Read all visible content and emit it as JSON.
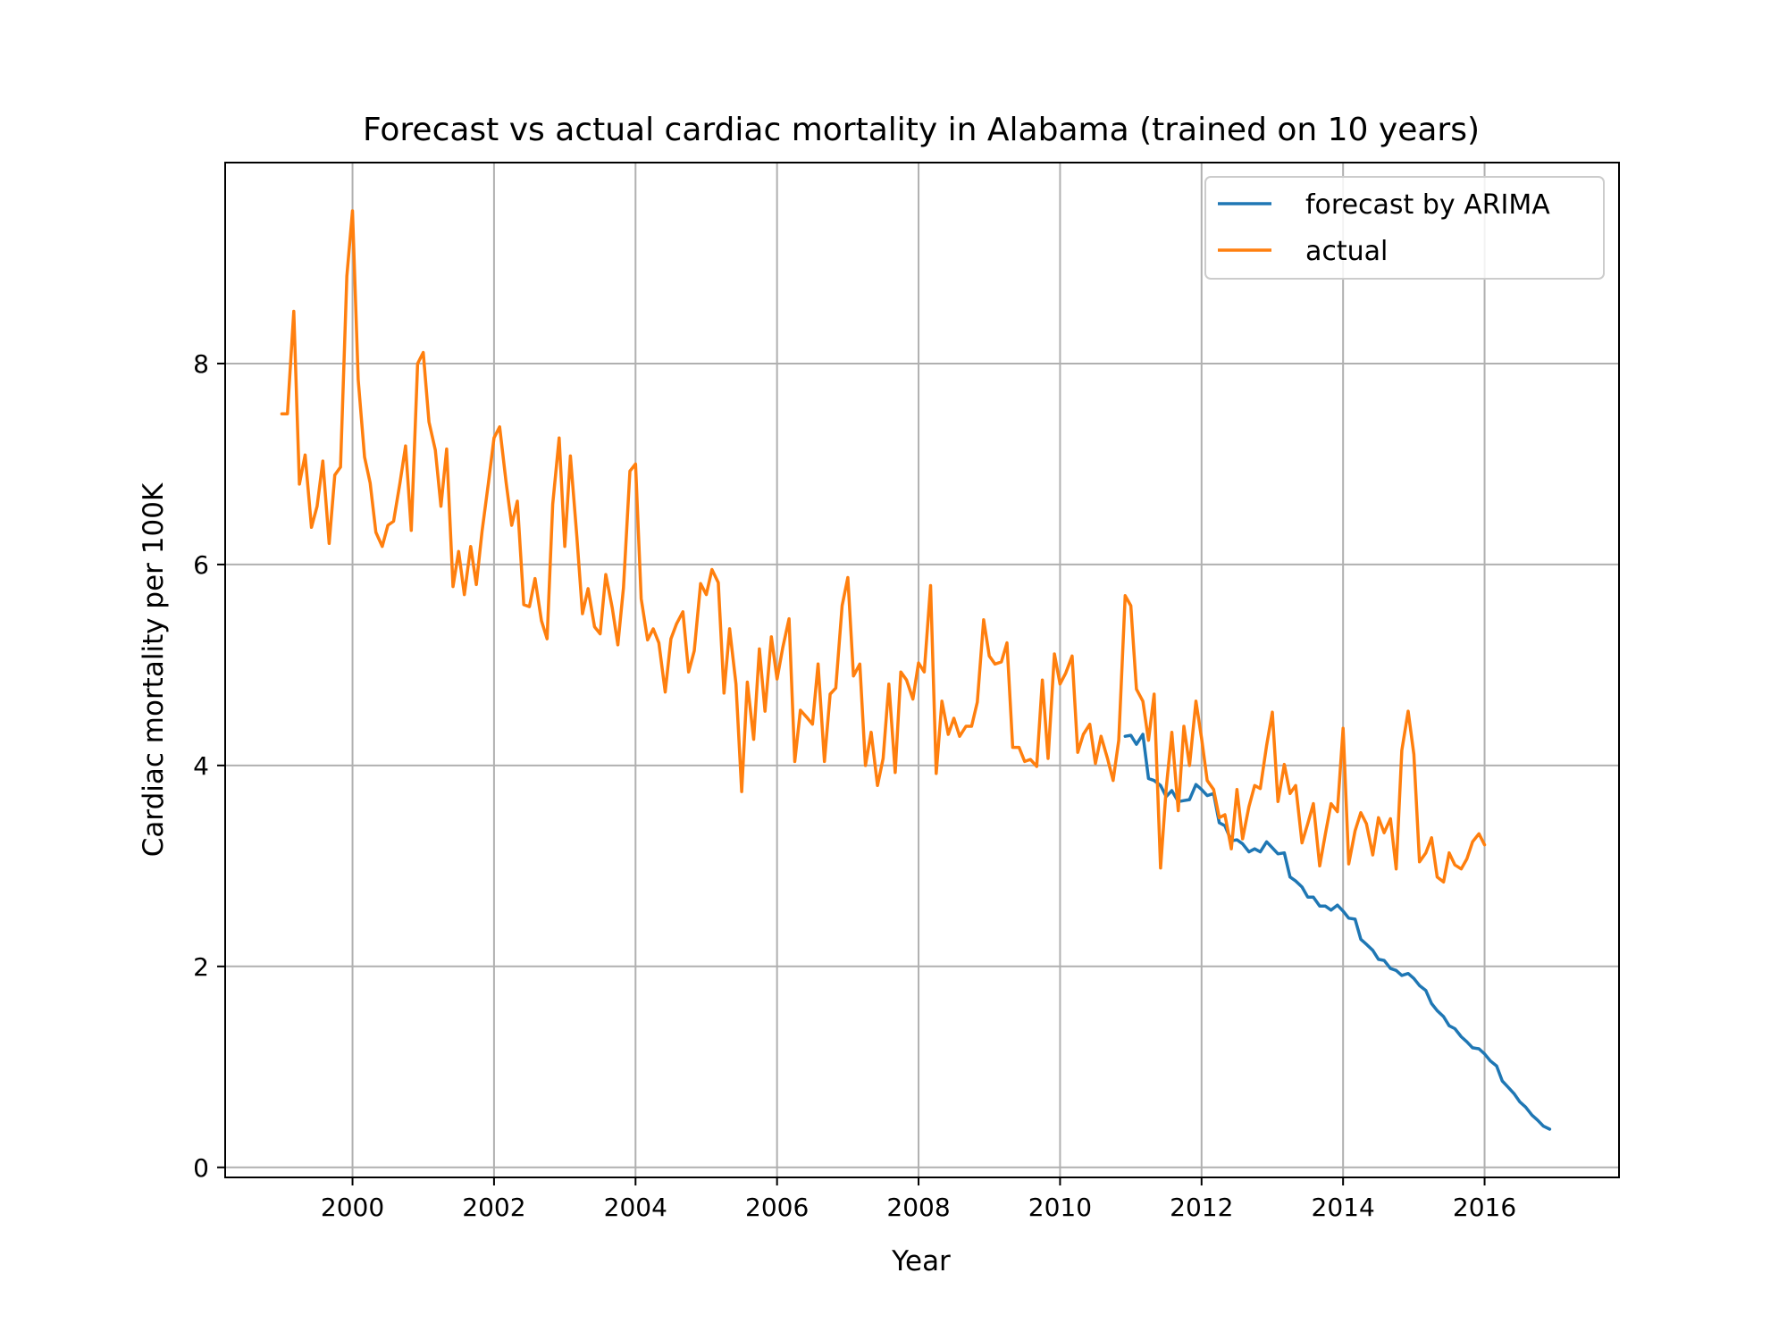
{
  "chart_data": {
    "type": "line",
    "title": "Forecast vs actual cardiac mortality in Alabama (trained on 10 years)",
    "xlabel": "Year",
    "ylabel": "Cardiac mortality per 100K",
    "xlim": [
      1998.2,
      2017.9
    ],
    "ylim": [
      -0.1,
      10.0
    ],
    "x_ticks": [
      2000,
      2002,
      2004,
      2006,
      2008,
      2010,
      2012,
      2014,
      2016
    ],
    "x_tick_labels": [
      "2000",
      "2002",
      "2004",
      "2006",
      "2008",
      "2010",
      "2012",
      "2014",
      "2016"
    ],
    "y_ticks": [
      0,
      2,
      4,
      6,
      8
    ],
    "y_tick_labels": [
      "0",
      "2",
      "4",
      "6",
      "8"
    ],
    "grid": true,
    "legend_position": "top-right",
    "colors": {
      "forecast": "#1f77b4",
      "actual": "#ff7f0e"
    },
    "series": [
      {
        "name": "forecast by ARIMA",
        "color": "#1f77b4",
        "x": [
          2010.92,
          2011.0,
          2011.08,
          2011.17,
          2011.25,
          2011.33,
          2011.42,
          2011.5,
          2011.58,
          2011.67,
          2011.75,
          2011.83,
          2011.92,
          2012.0,
          2012.08,
          2012.17,
          2012.25,
          2012.33,
          2012.42,
          2012.5,
          2012.58,
          2012.67,
          2012.75,
          2012.83,
          2012.92,
          2013.0,
          2013.08,
          2013.17,
          2013.25,
          2013.33,
          2013.42,
          2013.5,
          2013.58,
          2013.67,
          2013.75,
          2013.83,
          2013.92,
          2014.0,
          2014.08,
          2014.17,
          2014.25,
          2014.33,
          2014.42,
          2014.5,
          2014.58,
          2014.67,
          2014.75,
          2014.83,
          2014.92,
          2015.0,
          2015.08,
          2015.17,
          2015.25,
          2015.33,
          2015.42,
          2015.5,
          2015.58,
          2015.67,
          2015.75,
          2015.83,
          2015.92,
          2016.0,
          2016.08,
          2016.17,
          2016.25,
          2016.33,
          2016.42,
          2016.5,
          2016.58,
          2016.67,
          2016.75,
          2016.83,
          2016.92
        ],
        "values": [
          4.29,
          4.3,
          4.21,
          4.31,
          3.87,
          3.85,
          3.8,
          3.69,
          3.75,
          3.64,
          3.65,
          3.66,
          3.81,
          3.76,
          3.7,
          3.72,
          3.43,
          3.4,
          3.25,
          3.26,
          3.22,
          3.14,
          3.17,
          3.14,
          3.24,
          3.18,
          3.12,
          3.13,
          2.89,
          2.85,
          2.79,
          2.69,
          2.69,
          2.6,
          2.6,
          2.56,
          2.61,
          2.55,
          2.48,
          2.47,
          2.27,
          2.22,
          2.16,
          2.07,
          2.06,
          1.98,
          1.96,
          1.91,
          1.93,
          1.88,
          1.81,
          1.76,
          1.63,
          1.56,
          1.5,
          1.41,
          1.38,
          1.3,
          1.25,
          1.19,
          1.18,
          1.13,
          1.06,
          1.01,
          0.86,
          0.8,
          0.73,
          0.65,
          0.6,
          0.52,
          0.47,
          0.41,
          0.38
        ]
      },
      {
        "name": "actual",
        "color": "#ff7f0e",
        "x": [
          1999.0,
          1999.08,
          1999.17,
          1999.25,
          1999.33,
          1999.42,
          1999.5,
          1999.58,
          1999.67,
          1999.75,
          1999.83,
          1999.92,
          2000.0,
          2000.08,
          2000.17,
          2000.25,
          2000.33,
          2000.42,
          2000.5,
          2000.58,
          2000.67,
          2000.75,
          2000.83,
          2000.92,
          2001.0,
          2001.08,
          2001.17,
          2001.25,
          2001.33,
          2001.42,
          2001.5,
          2001.58,
          2001.67,
          2001.75,
          2001.83,
          2001.92,
          2002.0,
          2002.08,
          2002.17,
          2002.25,
          2002.33,
          2002.42,
          2002.5,
          2002.58,
          2002.67,
          2002.75,
          2002.83,
          2002.92,
          2003.0,
          2003.08,
          2003.17,
          2003.25,
          2003.33,
          2003.42,
          2003.5,
          2003.58,
          2003.67,
          2003.75,
          2003.83,
          2003.92,
          2004.0,
          2004.08,
          2004.17,
          2004.25,
          2004.33,
          2004.42,
          2004.5,
          2004.58,
          2004.67,
          2004.75,
          2004.83,
          2004.92,
          2005.0,
          2005.08,
          2005.17,
          2005.25,
          2005.33,
          2005.42,
          2005.5,
          2005.58,
          2005.67,
          2005.75,
          2005.83,
          2005.92,
          2006.0,
          2006.08,
          2006.17,
          2006.25,
          2006.33,
          2006.42,
          2006.5,
          2006.58,
          2006.67,
          2006.75,
          2006.83,
          2006.92,
          2007.0,
          2007.08,
          2007.17,
          2007.25,
          2007.33,
          2007.42,
          2007.5,
          2007.58,
          2007.67,
          2007.75,
          2007.83,
          2007.92,
          2008.0,
          2008.08,
          2008.17,
          2008.25,
          2008.33,
          2008.42,
          2008.5,
          2008.58,
          2008.67,
          2008.75,
          2008.83,
          2008.92,
          2009.0,
          2009.08,
          2009.17,
          2009.25,
          2009.33,
          2009.42,
          2009.5,
          2009.58,
          2009.67,
          2009.75,
          2009.83,
          2009.92,
          2010.0,
          2010.08,
          2010.17,
          2010.25,
          2010.33,
          2010.42,
          2010.5,
          2010.58,
          2010.67,
          2010.75,
          2010.83,
          2010.92,
          2011.0,
          2011.08,
          2011.17,
          2011.25,
          2011.33,
          2011.42,
          2011.5,
          2011.58,
          2011.67,
          2011.75,
          2011.83,
          2011.92,
          2012.0,
          2012.08,
          2012.17,
          2012.25,
          2012.33,
          2012.42,
          2012.5,
          2012.58,
          2012.67,
          2012.75,
          2012.83,
          2012.92,
          2013.0,
          2013.08,
          2013.17,
          2013.25,
          2013.33,
          2013.42,
          2013.5,
          2013.58,
          2013.67,
          2013.75,
          2013.83,
          2013.92,
          2014.0,
          2014.08,
          2014.17,
          2014.25,
          2014.33,
          2014.42,
          2014.5,
          2014.58,
          2014.67,
          2014.75,
          2014.83,
          2014.92,
          2015.0,
          2015.08,
          2015.17,
          2015.25,
          2015.33,
          2015.42,
          2015.5,
          2015.58,
          2015.67,
          2015.75,
          2015.83,
          2015.92,
          2016.0
        ],
        "values": [
          7.5,
          7.5,
          8.52,
          6.8,
          7.09,
          6.37,
          6.58,
          7.03,
          6.21,
          6.89,
          6.97,
          8.87,
          9.52,
          7.84,
          7.07,
          6.81,
          6.32,
          6.18,
          6.39,
          6.43,
          6.81,
          7.18,
          6.34,
          8.0,
          8.11,
          7.42,
          7.14,
          6.58,
          7.15,
          5.78,
          6.13,
          5.7,
          6.18,
          5.8,
          6.33,
          6.81,
          7.26,
          7.37,
          6.82,
          6.39,
          6.63,
          5.6,
          5.58,
          5.86,
          5.44,
          5.26,
          6.6,
          7.26,
          6.18,
          7.08,
          6.28,
          5.51,
          5.76,
          5.38,
          5.31,
          5.9,
          5.57,
          5.2,
          5.77,
          6.93,
          7.0,
          5.66,
          5.25,
          5.36,
          5.22,
          4.73,
          5.26,
          5.41,
          5.53,
          4.93,
          5.14,
          5.81,
          5.7,
          5.95,
          5.82,
          4.72,
          5.36,
          4.81,
          3.74,
          4.83,
          4.26,
          5.16,
          4.54,
          5.28,
          4.86,
          5.17,
          5.46,
          4.04,
          4.55,
          4.48,
          4.41,
          5.01,
          4.04,
          4.71,
          4.77,
          5.59,
          5.87,
          4.89,
          5.01,
          4.0,
          4.33,
          3.8,
          4.07,
          4.81,
          3.93,
          4.93,
          4.85,
          4.66,
          5.02,
          4.93,
          5.79,
          3.92,
          4.64,
          4.31,
          4.47,
          4.29,
          4.39,
          4.39,
          4.63,
          5.45,
          5.09,
          5.01,
          5.03,
          5.22,
          4.18,
          4.18,
          4.04,
          4.06,
          3.99,
          4.85,
          4.07,
          5.11,
          4.81,
          4.92,
          5.09,
          4.13,
          4.31,
          4.41,
          4.02,
          4.29,
          4.07,
          3.85,
          4.25,
          5.69,
          5.59,
          4.76,
          4.64,
          4.25,
          4.71,
          2.98,
          3.77,
          4.33,
          3.55,
          4.39,
          4.0,
          4.64,
          4.27,
          3.85,
          3.76,
          3.48,
          3.51,
          3.17,
          3.76,
          3.27,
          3.59,
          3.8,
          3.77,
          4.2,
          4.53,
          3.64,
          4.01,
          3.72,
          3.8,
          3.23,
          3.42,
          3.62,
          3.0,
          3.32,
          3.62,
          3.54,
          4.37,
          3.02,
          3.35,
          3.53,
          3.42,
          3.11,
          3.48,
          3.33,
          3.47,
          2.97,
          4.15,
          4.54,
          4.11,
          3.04,
          3.13,
          3.28,
          2.89,
          2.84,
          3.13,
          3.01,
          2.97,
          3.07,
          3.24,
          3.32,
          3.21
        ]
      }
    ]
  }
}
